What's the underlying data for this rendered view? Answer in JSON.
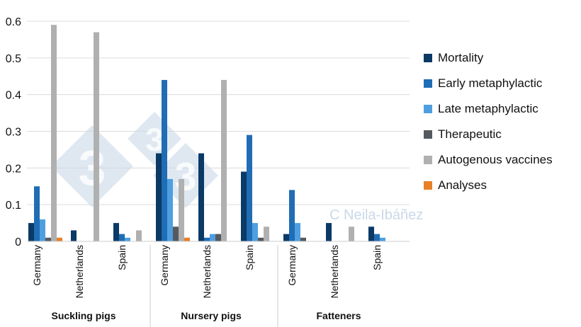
{
  "chart_data": {
    "type": "bar",
    "title": "",
    "xlabel": "",
    "ylabel": "",
    "ylim": [
      0,
      0.6
    ],
    "yticks": [
      "0",
      "0.1",
      "0.2",
      "0.3",
      "0.4",
      "0.5",
      "0.6"
    ],
    "grid": true,
    "legend_position": "right",
    "groups": [
      {
        "label": "Suckling pigs",
        "categories": [
          "Germany",
          "Netherlands",
          "Spain"
        ]
      },
      {
        "label": "Nursery pigs",
        "categories": [
          "Germany",
          "Netherlands",
          "Spain"
        ]
      },
      {
        "label": "Fatteners",
        "categories": [
          "Germany",
          "Netherlands",
          "Spain"
        ]
      }
    ],
    "categories": [
      "Germany",
      "Netherlands",
      "Spain",
      "Germany",
      "Netherlands",
      "Spain",
      "Germany",
      "Netherlands",
      "Spain"
    ],
    "series": [
      {
        "name": "Mortality",
        "color": "#0b3a66",
        "values": [
          0.05,
          0.03,
          0.05,
          0.24,
          0.24,
          0.19,
          0.02,
          0.05,
          0.04
        ]
      },
      {
        "name": "Early metaphylactic",
        "color": "#1f6db5",
        "values": [
          0.15,
          0,
          0.02,
          0.44,
          0.01,
          0.29,
          0.14,
          0,
          0.02
        ]
      },
      {
        "name": "Late metaphylactic",
        "color": "#4f9fe0",
        "values": [
          0.06,
          0,
          0.01,
          0.17,
          0.02,
          0.05,
          0.05,
          0,
          0.01
        ]
      },
      {
        "name": "Therapeutic",
        "color": "#555a5f",
        "values": [
          0.01,
          0,
          0,
          0.04,
          0.02,
          0.01,
          0.01,
          0,
          0
        ]
      },
      {
        "name": "Autogenous vaccines",
        "color": "#b0b0b0",
        "values": [
          0.59,
          0.57,
          0.03,
          0.17,
          0.44,
          0.04,
          0,
          0.04,
          0
        ]
      },
      {
        "name": "Analyses",
        "color": "#e8802a",
        "values": [
          0.01,
          0,
          0,
          0.01,
          0,
          0,
          0,
          0,
          0
        ]
      }
    ]
  },
  "watermark": {
    "text": "C Neila-Ibáñez",
    "logo_text": "3",
    "color": "#c9d8e8"
  }
}
